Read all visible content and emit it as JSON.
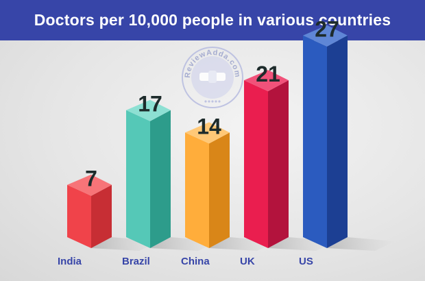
{
  "chart_data": {
    "type": "bar",
    "title": "Doctors per 10,000 people in various countries",
    "categories": [
      "India",
      "Brazil",
      "China",
      "UK",
      "US"
    ],
    "values": [
      7,
      17,
      14,
      21,
      27
    ],
    "xlabel": "",
    "ylabel": "",
    "ylim": [
      0,
      30
    ],
    "grid": false,
    "legend": "none",
    "bar_style": "3d",
    "colors": {
      "front": [
        "#f0434a",
        "#55c8b7",
        "#ffad3b",
        "#ea1e4f",
        "#2b5bbf"
      ],
      "side": [
        "#c72e34",
        "#2d9c8b",
        "#d98618",
        "#b3133d",
        "#1c3f93"
      ],
      "top": [
        "#f77478",
        "#8de0d3",
        "#ffc877",
        "#f1527a",
        "#5f86d6"
      ],
      "category_label": "#3745a8",
      "value_label": "#1d2b2b"
    }
  },
  "watermark": {
    "text": "ReviewAdda.com",
    "color": "#9aa2cc"
  }
}
